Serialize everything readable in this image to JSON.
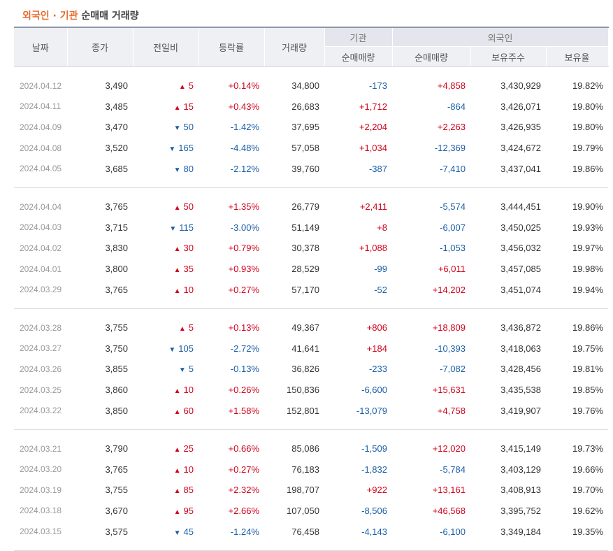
{
  "title": {
    "highlight": "외국인 · 기관",
    "rest": "순매매 거래량"
  },
  "headers": {
    "date": "날짜",
    "close": "종가",
    "change": "전일비",
    "rate": "등락률",
    "volume": "거래량",
    "inst_group": "기관",
    "inst_net": "순매매량",
    "foreign_group": "외국인",
    "foreign_net": "순매매량",
    "foreign_hold": "보유주수",
    "foreign_ratio": "보유율"
  },
  "colors": {
    "up": "#d0021b",
    "down": "#1a5ea8",
    "title_accent": "#e8692c"
  },
  "groups": [
    [
      {
        "date": "2024.04.12",
        "close": "3,490",
        "dir": "up",
        "change": "5",
        "rate": "+0.14%",
        "volume": "34,800",
        "inst": "-173",
        "foreign": "+4,858",
        "hold": "3,430,929",
        "ratio": "19.82%"
      },
      {
        "date": "2024.04.11",
        "close": "3,485",
        "dir": "up",
        "change": "15",
        "rate": "+0.43%",
        "volume": "26,683",
        "inst": "+1,712",
        "foreign": "-864",
        "hold": "3,426,071",
        "ratio": "19.80%"
      },
      {
        "date": "2024.04.09",
        "close": "3,470",
        "dir": "down",
        "change": "50",
        "rate": "-1.42%",
        "volume": "37,695",
        "inst": "+2,204",
        "foreign": "+2,263",
        "hold": "3,426,935",
        "ratio": "19.80%"
      },
      {
        "date": "2024.04.08",
        "close": "3,520",
        "dir": "down",
        "change": "165",
        "rate": "-4.48%",
        "volume": "57,058",
        "inst": "+1,034",
        "foreign": "-12,369",
        "hold": "3,424,672",
        "ratio": "19.79%"
      },
      {
        "date": "2024.04.05",
        "close": "3,685",
        "dir": "down",
        "change": "80",
        "rate": "-2.12%",
        "volume": "39,760",
        "inst": "-387",
        "foreign": "-7,410",
        "hold": "3,437,041",
        "ratio": "19.86%"
      }
    ],
    [
      {
        "date": "2024.04.04",
        "close": "3,765",
        "dir": "up",
        "change": "50",
        "rate": "+1.35%",
        "volume": "26,779",
        "inst": "+2,411",
        "foreign": "-5,574",
        "hold": "3,444,451",
        "ratio": "19.90%"
      },
      {
        "date": "2024.04.03",
        "close": "3,715",
        "dir": "down",
        "change": "115",
        "rate": "-3.00%",
        "volume": "51,149",
        "inst": "+8",
        "foreign": "-6,007",
        "hold": "3,450,025",
        "ratio": "19.93%"
      },
      {
        "date": "2024.04.02",
        "close": "3,830",
        "dir": "up",
        "change": "30",
        "rate": "+0.79%",
        "volume": "30,378",
        "inst": "+1,088",
        "foreign": "-1,053",
        "hold": "3,456,032",
        "ratio": "19.97%"
      },
      {
        "date": "2024.04.01",
        "close": "3,800",
        "dir": "up",
        "change": "35",
        "rate": "+0.93%",
        "volume": "28,529",
        "inst": "-99",
        "foreign": "+6,011",
        "hold": "3,457,085",
        "ratio": "19.98%"
      },
      {
        "date": "2024.03.29",
        "close": "3,765",
        "dir": "up",
        "change": "10",
        "rate": "+0.27%",
        "volume": "57,170",
        "inst": "-52",
        "foreign": "+14,202",
        "hold": "3,451,074",
        "ratio": "19.94%"
      }
    ],
    [
      {
        "date": "2024.03.28",
        "close": "3,755",
        "dir": "up",
        "change": "5",
        "rate": "+0.13%",
        "volume": "49,367",
        "inst": "+806",
        "foreign": "+18,809",
        "hold": "3,436,872",
        "ratio": "19.86%"
      },
      {
        "date": "2024.03.27",
        "close": "3,750",
        "dir": "down",
        "change": "105",
        "rate": "-2.72%",
        "volume": "41,641",
        "inst": "+184",
        "foreign": "-10,393",
        "hold": "3,418,063",
        "ratio": "19.75%"
      },
      {
        "date": "2024.03.26",
        "close": "3,855",
        "dir": "down",
        "change": "5",
        "rate": "-0.13%",
        "volume": "36,826",
        "inst": "-233",
        "foreign": "-7,082",
        "hold": "3,428,456",
        "ratio": "19.81%"
      },
      {
        "date": "2024.03.25",
        "close": "3,860",
        "dir": "up",
        "change": "10",
        "rate": "+0.26%",
        "volume": "150,836",
        "inst": "-6,600",
        "foreign": "+15,631",
        "hold": "3,435,538",
        "ratio": "19.85%"
      },
      {
        "date": "2024.03.22",
        "close": "3,850",
        "dir": "up",
        "change": "60",
        "rate": "+1.58%",
        "volume": "152,801",
        "inst": "-13,079",
        "foreign": "+4,758",
        "hold": "3,419,907",
        "ratio": "19.76%"
      }
    ],
    [
      {
        "date": "2024.03.21",
        "close": "3,790",
        "dir": "up",
        "change": "25",
        "rate": "+0.66%",
        "volume": "85,086",
        "inst": "-1,509",
        "foreign": "+12,020",
        "hold": "3,415,149",
        "ratio": "19.73%"
      },
      {
        "date": "2024.03.20",
        "close": "3,765",
        "dir": "up",
        "change": "10",
        "rate": "+0.27%",
        "volume": "76,183",
        "inst": "-1,832",
        "foreign": "-5,784",
        "hold": "3,403,129",
        "ratio": "19.66%"
      },
      {
        "date": "2024.03.19",
        "close": "3,755",
        "dir": "up",
        "change": "85",
        "rate": "+2.32%",
        "volume": "198,707",
        "inst": "+922",
        "foreign": "+13,161",
        "hold": "3,408,913",
        "ratio": "19.70%"
      },
      {
        "date": "2024.03.18",
        "close": "3,670",
        "dir": "up",
        "change": "95",
        "rate": "+2.66%",
        "volume": "107,050",
        "inst": "-8,506",
        "foreign": "+46,568",
        "hold": "3,395,752",
        "ratio": "19.62%"
      },
      {
        "date": "2024.03.15",
        "close": "3,575",
        "dir": "down",
        "change": "45",
        "rate": "-1.24%",
        "volume": "76,458",
        "inst": "-4,143",
        "foreign": "-6,100",
        "hold": "3,349,184",
        "ratio": "19.35%"
      }
    ]
  ]
}
